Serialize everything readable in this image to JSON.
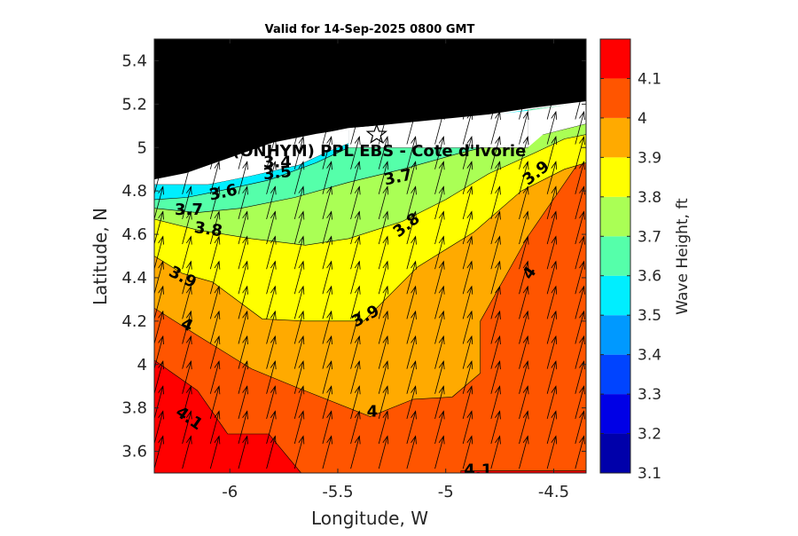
{
  "chart_data": {
    "type": "heatmap",
    "title": "Valid for 14-Sep-2025 0800 GMT",
    "xlabel": "Longitude, W",
    "ylabel": "Latitude, N",
    "xlim": [
      -6.35,
      -4.35
    ],
    "ylim": [
      3.5,
      5.5
    ],
    "x_ticks": [
      -6,
      -5.5,
      -5,
      -4.5
    ],
    "x_tick_labels": [
      "-6",
      "-5.5",
      "-5",
      "-4.5"
    ],
    "y_ticks": [
      3.6,
      3.8,
      4,
      4.2,
      4.4,
      4.6,
      4.8,
      5,
      5.2,
      5.4
    ],
    "y_tick_labels": [
      "3.6",
      "3.8",
      "4",
      "4.2",
      "4.4",
      "4.6",
      "4.8",
      "5",
      "5.2",
      "5.4"
    ],
    "location_label": "(ONHYM) PPL EBS  - Cote d'Ivorie",
    "marker": {
      "symbol": "star",
      "lon": -5.32,
      "lat": 5.06
    },
    "colorbar": {
      "label": "Wave Height, ft",
      "range": [
        3.1,
        4.2
      ],
      "ticks": [
        3.1,
        3.2,
        3.3,
        3.4,
        3.5,
        3.6,
        3.7,
        3.8,
        3.9,
        4,
        4.1
      ],
      "tick_labels": [
        "3.1",
        "3.2",
        "3.3",
        "3.4",
        "3.5",
        "3.6",
        "3.7",
        "3.8",
        "3.9",
        "4",
        "4.1"
      ],
      "levels": [
        {
          "from": 3.1,
          "to": 3.2,
          "color": "#0000aa"
        },
        {
          "from": 3.2,
          "to": 3.3,
          "color": "#0000e6"
        },
        {
          "from": 3.3,
          "to": 3.4,
          "color": "#0044ff"
        },
        {
          "from": 3.4,
          "to": 3.5,
          "color": "#0099ff"
        },
        {
          "from": 3.5,
          "to": 3.6,
          "color": "#00eeff"
        },
        {
          "from": 3.6,
          "to": 3.7,
          "color": "#55ffaa"
        },
        {
          "from": 3.7,
          "to": 3.8,
          "color": "#aaff55"
        },
        {
          "from": 3.8,
          "to": 3.9,
          "color": "#ffff00"
        },
        {
          "from": 3.9,
          "to": 4.0,
          "color": "#ffaa00"
        },
        {
          "from": 4.0,
          "to": 4.1,
          "color": "#ff5500"
        },
        {
          "from": 4.1,
          "to": 4.2,
          "color": "#ff0000"
        }
      ]
    },
    "land_color": "#000000",
    "land_boundary": [
      [
        -6.35,
        4.85
      ],
      [
        -6.2,
        4.88
      ],
      [
        -6.0,
        4.95
      ],
      [
        -5.8,
        5.02
      ],
      [
        -5.6,
        5.06
      ],
      [
        -5.4,
        5.09
      ],
      [
        -5.2,
        5.11
      ],
      [
        -5.0,
        5.13
      ],
      [
        -4.8,
        5.15
      ],
      [
        -4.6,
        5.18
      ],
      [
        -4.35,
        5.21
      ]
    ],
    "contour_bands": [
      {
        "level": 4.1,
        "color": "#ff0000",
        "poly": [
          [
            -6.35,
            3.5
          ],
          [
            -4.35,
            3.5
          ],
          [
            -4.35,
            4.95
          ],
          [
            -6.35,
            4.95
          ]
        ]
      },
      {
        "level": 4.0,
        "color": "#ff5500",
        "poly": [
          [
            -6.35,
            4.02
          ],
          [
            -6.15,
            3.88
          ],
          [
            -6.01,
            3.68
          ],
          [
            -5.82,
            3.68
          ],
          [
            -5.67,
            3.5
          ],
          [
            -4.93,
            3.5
          ],
          [
            -4.93,
            3.51
          ],
          [
            -4.35,
            3.51
          ],
          [
            -4.35,
            4.95
          ],
          [
            -6.35,
            4.95
          ]
        ]
      },
      {
        "level": 3.9,
        "color": "#ffaa00",
        "poly": [
          [
            -6.35,
            4.26
          ],
          [
            -6.16,
            4.14
          ],
          [
            -5.9,
            3.98
          ],
          [
            -5.68,
            3.89
          ],
          [
            -5.35,
            3.76
          ],
          [
            -5.15,
            3.84
          ],
          [
            -4.97,
            3.85
          ],
          [
            -4.84,
            3.96
          ],
          [
            -4.84,
            4.2
          ],
          [
            -4.62,
            4.59
          ],
          [
            -4.35,
            4.98
          ],
          [
            -4.35,
            5.21
          ],
          [
            -6.35,
            4.95
          ]
        ]
      },
      {
        "level": 3.8,
        "color": "#ffff00",
        "poly": [
          [
            -6.35,
            4.5
          ],
          [
            -6.22,
            4.42
          ],
          [
            -6.08,
            4.38
          ],
          [
            -5.85,
            4.21
          ],
          [
            -5.65,
            4.2
          ],
          [
            -5.38,
            4.2
          ],
          [
            -5.13,
            4.45
          ],
          [
            -4.87,
            4.61
          ],
          [
            -4.65,
            4.8
          ],
          [
            -4.45,
            4.9
          ],
          [
            -4.35,
            4.93
          ],
          [
            -4.35,
            5.21
          ],
          [
            -6.35,
            4.95
          ]
        ]
      },
      {
        "level": 3.7,
        "color": "#aaff55",
        "poly": [
          [
            -6.35,
            4.67
          ],
          [
            -6.15,
            4.62
          ],
          [
            -5.9,
            4.58
          ],
          [
            -5.65,
            4.55
          ],
          [
            -5.45,
            4.58
          ],
          [
            -5.2,
            4.66
          ],
          [
            -5.0,
            4.76
          ],
          [
            -4.8,
            4.88
          ],
          [
            -4.6,
            4.97
          ],
          [
            -4.45,
            5.04
          ],
          [
            -4.35,
            5.06
          ],
          [
            -4.35,
            5.21
          ],
          [
            -6.35,
            4.95
          ]
        ]
      },
      {
        "level": 3.6,
        "color": "#55ffaa",
        "poly": [
          [
            -6.35,
            4.72
          ],
          [
            -6.15,
            4.7
          ],
          [
            -5.95,
            4.72
          ],
          [
            -5.7,
            4.77
          ],
          [
            -5.45,
            4.84
          ],
          [
            -5.2,
            4.9
          ],
          [
            -4.95,
            4.97
          ],
          [
            -4.75,
            5.02
          ],
          [
            -4.55,
            5.06
          ],
          [
            -4.35,
            5.11
          ],
          [
            -4.35,
            5.21
          ],
          [
            -6.35,
            4.95
          ]
        ]
      },
      {
        "level": 3.5,
        "color": "#00eeff",
        "poly": [
          [
            -6.35,
            4.76
          ],
          [
            -6.2,
            4.77
          ],
          [
            -6.05,
            4.8
          ],
          [
            -5.82,
            4.85
          ],
          [
            -5.6,
            4.93
          ],
          [
            -5.45,
            5.0
          ],
          [
            -4.62,
            5.0
          ],
          [
            -4.62,
            5.21
          ],
          [
            -6.35,
            5.21
          ]
        ]
      },
      {
        "level": 3.4,
        "color": "#0099ff",
        "poly": [
          [
            -6.35,
            4.83
          ],
          [
            -6.1,
            4.83
          ],
          [
            -5.9,
            4.87
          ],
          [
            -5.68,
            4.92
          ],
          [
            -5.55,
            4.98
          ],
          [
            -5.45,
            5.02
          ],
          [
            -5.45,
            5.21
          ],
          [
            -6.35,
            5.21
          ]
        ]
      },
      {
        "level": 3.3,
        "color": "#0044ff",
        "poly": [
          [
            -5.95,
            4.9
          ],
          [
            -5.82,
            4.91
          ],
          [
            -5.72,
            4.95
          ],
          [
            -5.64,
            5.0
          ],
          [
            -5.64,
            5.2
          ],
          [
            -5.95,
            5.2
          ]
        ]
      },
      {
        "level": 3.2,
        "color": "#0000e6",
        "poly": [
          [
            -5.92,
            4.95
          ],
          [
            -5.8,
            4.95
          ],
          [
            -5.72,
            4.99
          ],
          [
            -5.72,
            5.2
          ],
          [
            -5.92,
            5.2
          ]
        ]
      }
    ],
    "contour_labels": [
      {
        "text": "4.1",
        "lon": -6.19,
        "lat": 3.75,
        "angle": 35
      },
      {
        "text": "4.1",
        "lon": -4.85,
        "lat": 3.51,
        "angle": 0
      },
      {
        "text": "4",
        "lon": -6.2,
        "lat": 4.18,
        "angle": 25
      },
      {
        "text": "4",
        "lon": -5.34,
        "lat": 3.78,
        "angle": 0
      },
      {
        "text": "4",
        "lon": -4.61,
        "lat": 4.42,
        "angle": -55
      },
      {
        "text": "3.9",
        "lon": -6.22,
        "lat": 4.4,
        "angle": 28
      },
      {
        "text": "3.9",
        "lon": -5.37,
        "lat": 4.22,
        "angle": -28
      },
      {
        "text": "3.9",
        "lon": -4.58,
        "lat": 4.88,
        "angle": -38
      },
      {
        "text": "3.8",
        "lon": -6.1,
        "lat": 4.62,
        "angle": 8
      },
      {
        "text": "3.8",
        "lon": -5.18,
        "lat": 4.64,
        "angle": -38
      },
      {
        "text": "3.7",
        "lon": -6.19,
        "lat": 4.71,
        "angle": 0
      },
      {
        "text": "3.7",
        "lon": -5.22,
        "lat": 4.86,
        "angle": -12
      },
      {
        "text": "3.6",
        "lon": -6.03,
        "lat": 4.79,
        "angle": -12
      },
      {
        "text": "3.5",
        "lon": -5.78,
        "lat": 4.88,
        "angle": -6
      },
      {
        "text": "3.4",
        "lon": -5.78,
        "lat": 4.93,
        "angle": 0
      }
    ],
    "vectors": {
      "lon_start": -6.35,
      "lon_step": 0.13,
      "lon_count": 16,
      "lat_start": 3.52,
      "lat_step": 0.115,
      "lat_count": 15,
      "direction_deg_from_north": 15,
      "length_deg": 0.155
    }
  }
}
